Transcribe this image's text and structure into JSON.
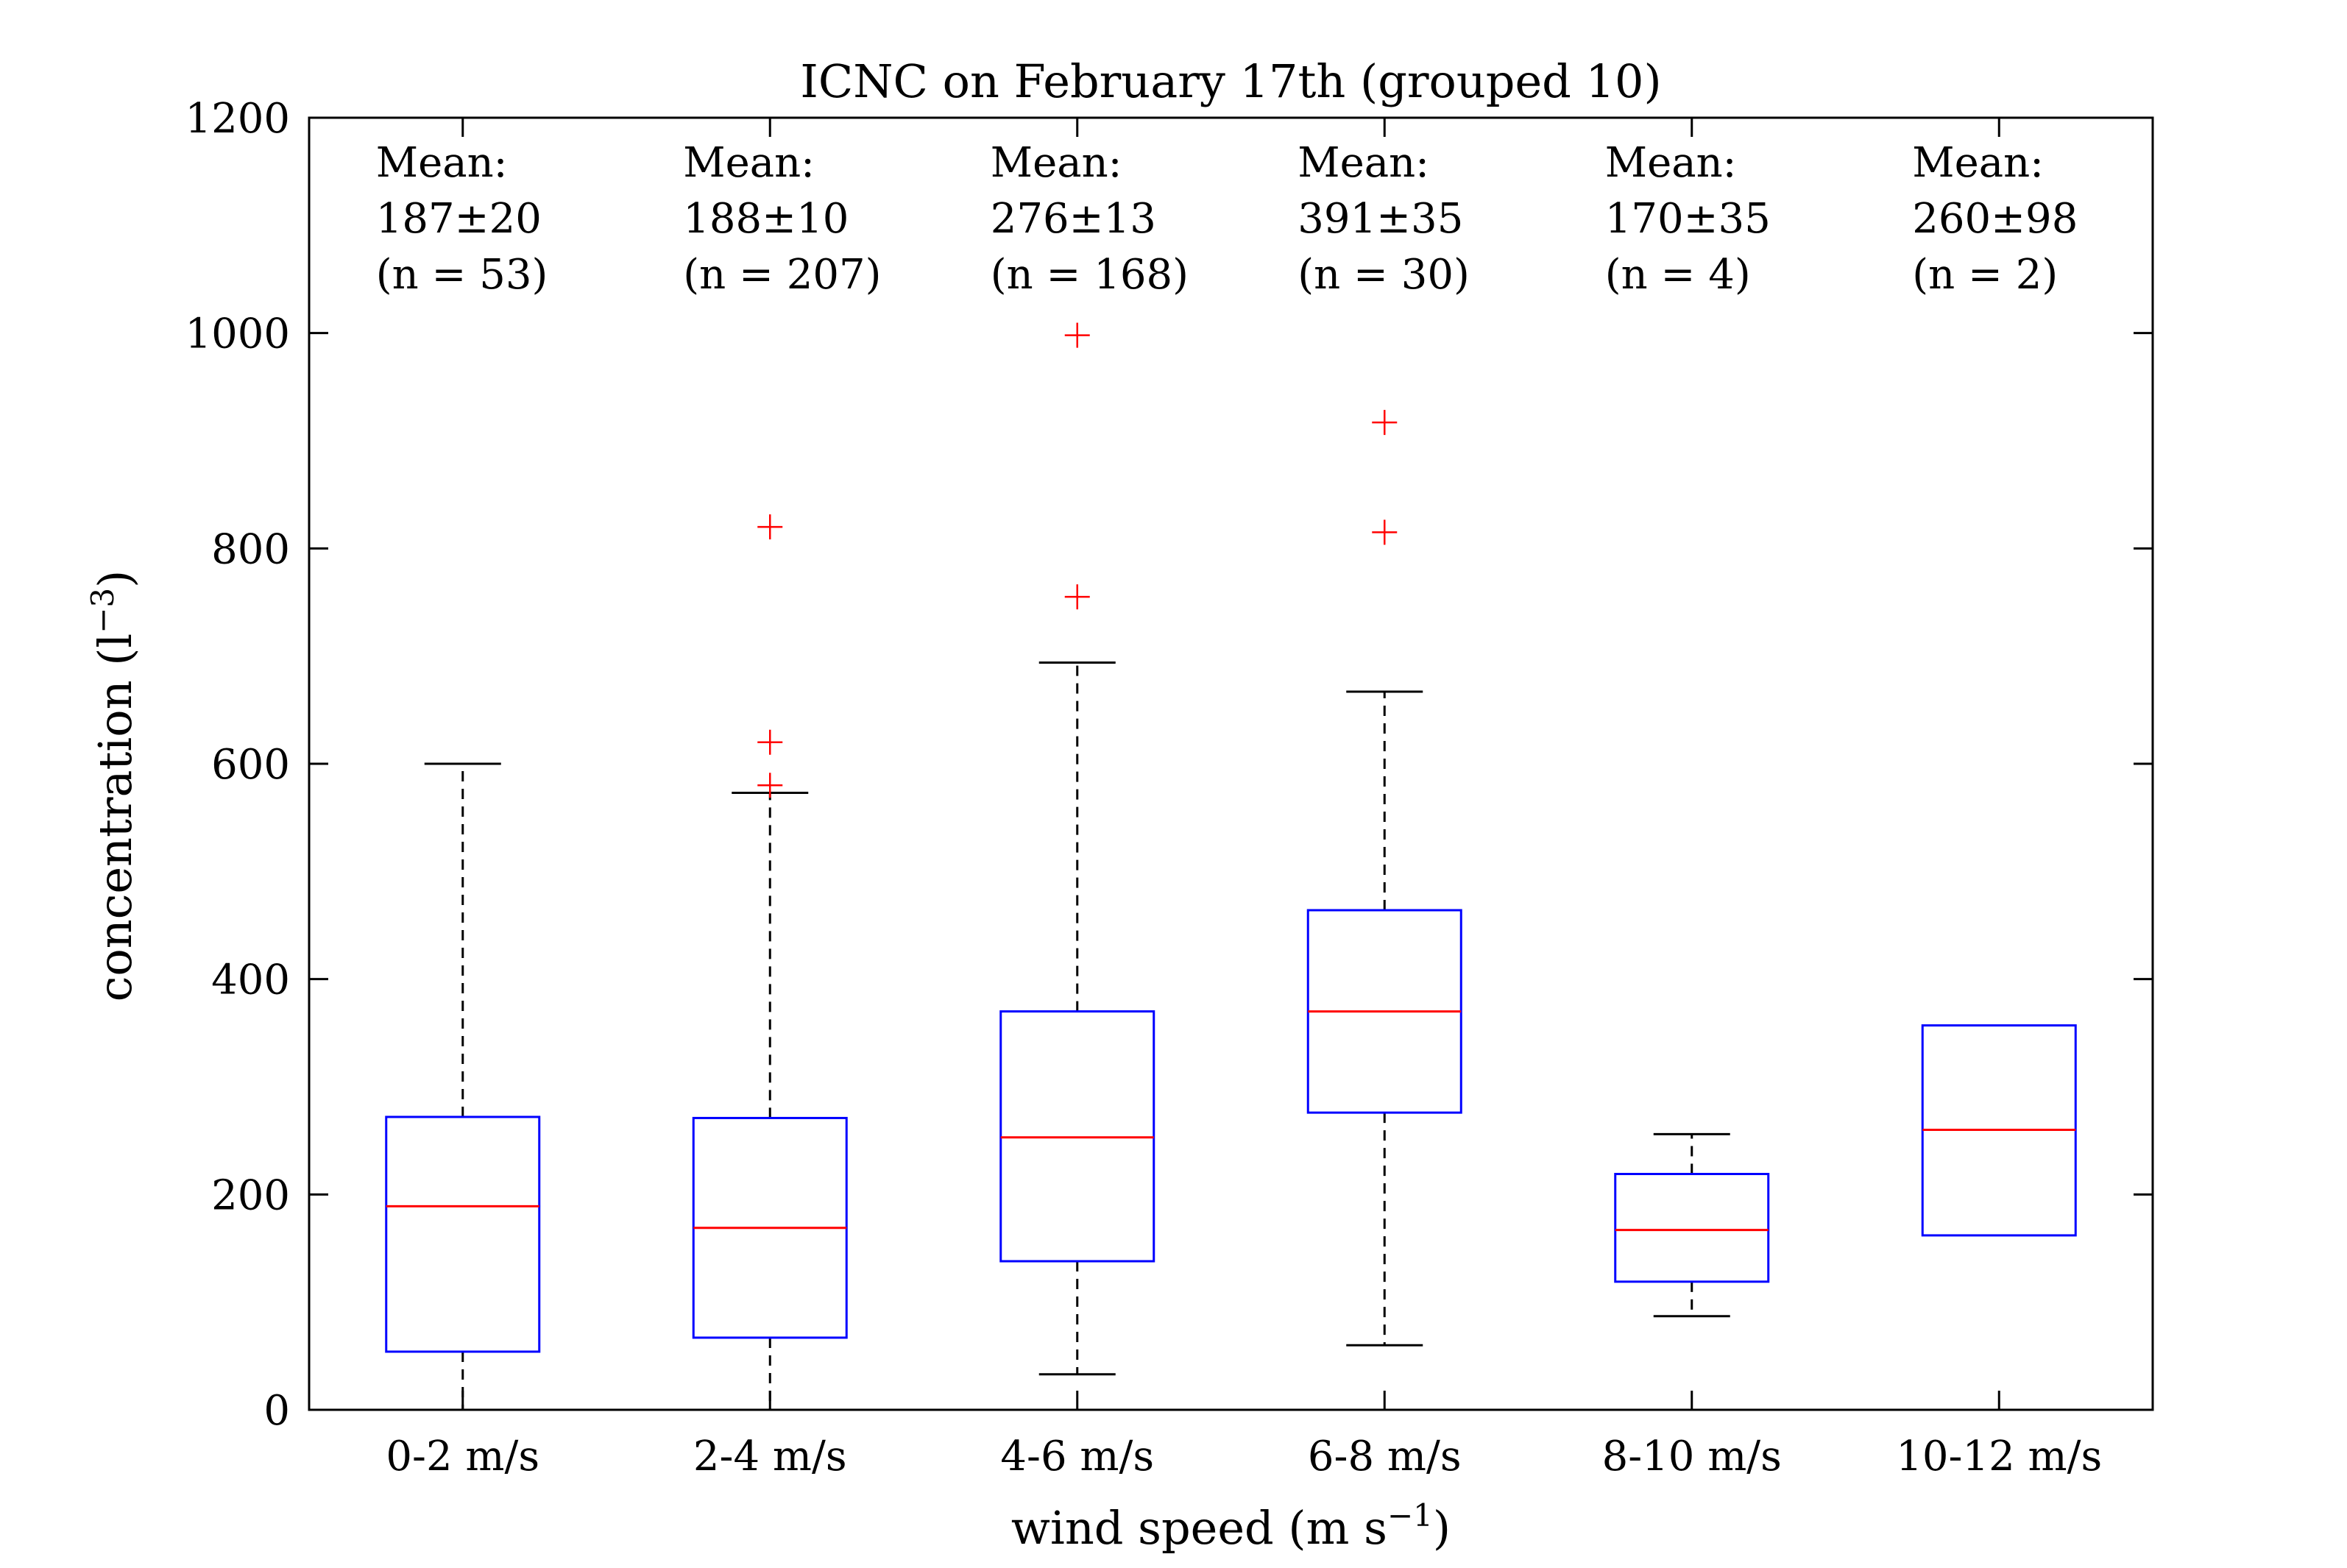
{
  "chart_data": {
    "type": "box",
    "title": "ICNC on February 17th (grouped 10)",
    "xlabel": "wind speed (m s",
    "xlabel_sup": "−1",
    "xlabel_end": ")",
    "ylabel": "concentration (l",
    "ylabel_sup": "−3",
    "ylabel_end": ")",
    "ylim": [
      0,
      1200
    ],
    "yticks": [
      "0",
      "200",
      "400",
      "600",
      "800",
      "1000",
      "1200"
    ],
    "grid": false,
    "colors": {
      "box": "#0000ff",
      "median": "#ff0000",
      "whisker": "#000000",
      "outlier": "#ff0000"
    },
    "categories": [
      "0-2 m/s",
      "2-4 m/s",
      "4-6 m/s",
      "6-8 m/s",
      "8-10 m/s",
      "10-12 m/s"
    ],
    "annotations": [
      {
        "line1": "Mean:",
        "line2": "187±20",
        "line3": "(n = 53)"
      },
      {
        "line1": "Mean:",
        "line2": "188±10",
        "line3": "(n = 207)"
      },
      {
        "line1": "Mean:",
        "line2": "276±13",
        "line3": "(n = 168)"
      },
      {
        "line1": "Mean:",
        "line2": "391±35",
        "line3": "(n = 30)"
      },
      {
        "line1": "Mean:",
        "line2": "170±35",
        "line3": "(n = 4)"
      },
      {
        "line1": "Mean:",
        "line2": "260±98",
        "line3": "(n = 2)"
      }
    ],
    "boxes": [
      {
        "whisker_low": 0,
        "q1": 54,
        "median": 189,
        "q3": 272,
        "whisker_high": 600,
        "outliers": []
      },
      {
        "whisker_low": 0,
        "q1": 67,
        "median": 169,
        "q3": 271,
        "whisker_high": 573,
        "outliers": [
          580,
          620,
          820
        ]
      },
      {
        "whisker_low": 33,
        "q1": 138,
        "median": 253,
        "q3": 370,
        "whisker_high": 694,
        "outliers": [
          755,
          998
        ]
      },
      {
        "whisker_low": 60,
        "q1": 276,
        "median": 370,
        "q3": 464,
        "whisker_high": 667,
        "outliers": [
          815,
          917
        ]
      },
      {
        "whisker_low": 87,
        "q1": 119,
        "median": 167,
        "q3": 219,
        "whisker_high": 256,
        "outliers": []
      },
      {
        "whisker_low": 162,
        "q1": 162,
        "median": 260,
        "q3": 357,
        "whisker_high": 357,
        "outliers": []
      }
    ]
  }
}
